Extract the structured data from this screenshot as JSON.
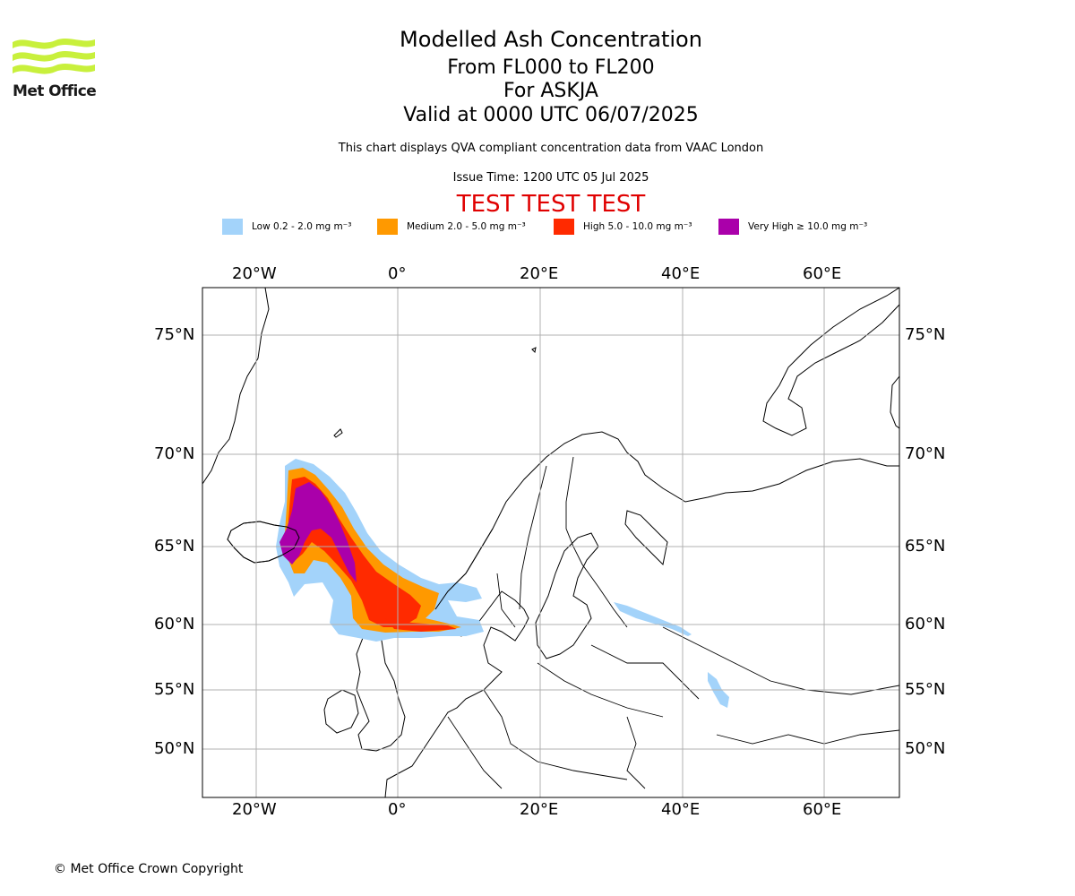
{
  "logo": {
    "text": "Met Office",
    "color": "#c8f03c"
  },
  "header": {
    "title": "Modelled Ash Concentration",
    "levels": "From FL000 to FL200",
    "volcano": "For ASKJA",
    "valid": "Valid at 0000 UTC 06/07/2025",
    "note": "This chart displays QVA compliant concentration data from VAAC London",
    "issue": "Issue Time: 1200 UTC 05 Jul 2025",
    "test_banner": "TEST TEST TEST"
  },
  "legend": [
    {
      "label": "Low 0.2 - 2.0 mg m⁻³",
      "color": "#a3d3fa"
    },
    {
      "label": "Medium 2.0 - 5.0 mg m⁻³",
      "color": "#ff9900"
    },
    {
      "label": "High 5.0 - 10.0 mg m⁻³",
      "color": "#ff2a00"
    },
    {
      "label": "Very High ≥ 10.0 mg m⁻³",
      "color": "#aa00aa"
    }
  ],
  "map": {
    "lon_ticks": [
      "20°W",
      "0°",
      "20°E",
      "40°E",
      "60°E"
    ],
    "lat_ticks": [
      "75°N",
      "70°N",
      "65°N",
      "60°N",
      "55°N",
      "50°N"
    ],
    "grid": true,
    "region": "North Atlantic / Europe"
  },
  "footer": {
    "copyright": "© Met Office Crown Copyright"
  }
}
